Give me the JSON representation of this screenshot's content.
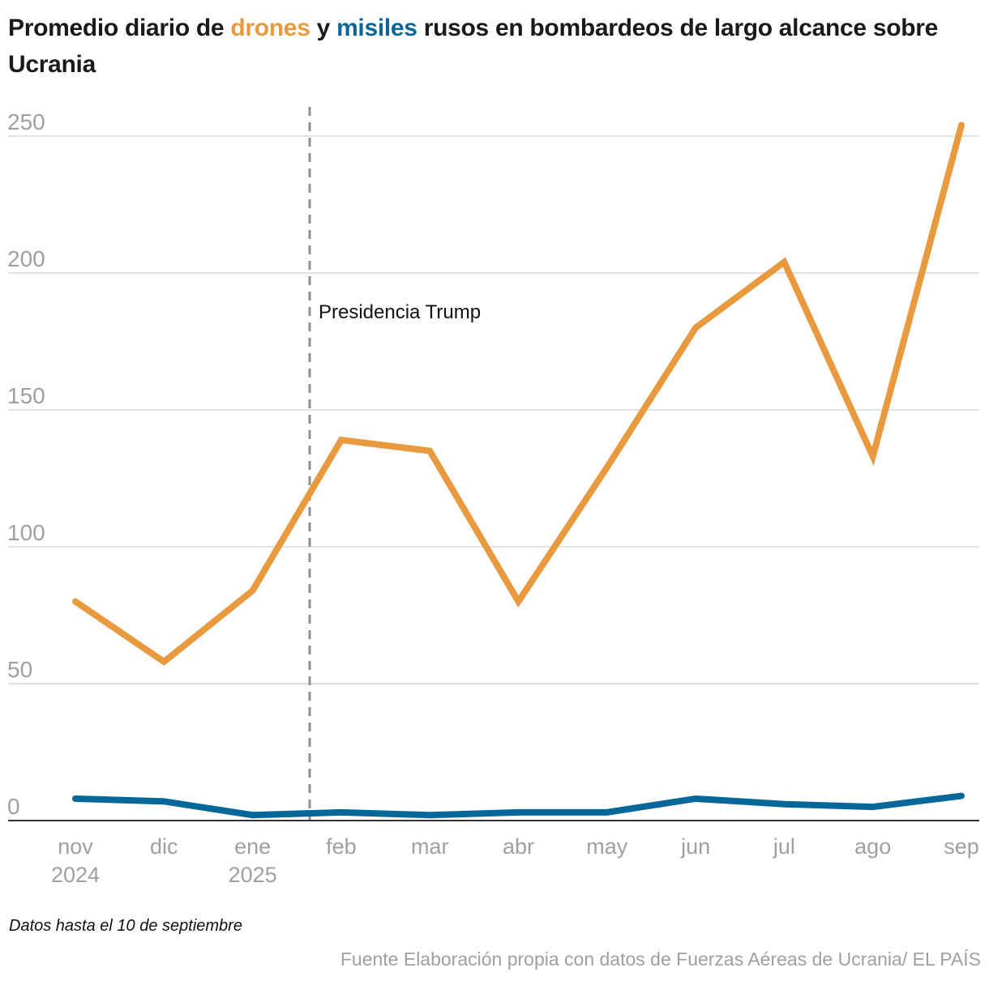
{
  "header": {
    "title_part1": "Promedio diario de ",
    "title_drones": "drones",
    "title_part2": " y ",
    "title_misiles": "misiles",
    "title_part3": " rusos en bombardeos de largo alcance sobre Ucrania"
  },
  "colors": {
    "drones": "#ea9a3e",
    "misiles": "#066899",
    "grid": "#e3e3e3",
    "axis": "#333333",
    "tick_text": "#a0a0a0",
    "annotation_line": "#8c9098"
  },
  "chart_data": {
    "type": "line",
    "title": "Promedio diario de drones y misiles rusos en bombardeos de largo alcance sobre Ucrania",
    "xlabel": "",
    "ylabel": "",
    "categories": [
      "nov",
      "dic",
      "ene",
      "feb",
      "mar",
      "abr",
      "may",
      "jun",
      "jul",
      "ago",
      "sep"
    ],
    "category_sublabels": [
      "2024",
      "",
      "2025",
      "",
      "",
      "",
      "",
      "",
      "",
      "",
      ""
    ],
    "series": [
      {
        "name": "drones",
        "values": [
          80,
          58,
          84,
          139,
          135,
          80,
          129,
          180,
          204,
          133,
          254
        ]
      },
      {
        "name": "misiles",
        "values": [
          8,
          7,
          2,
          3,
          2,
          3,
          3,
          8,
          6,
          5,
          9
        ]
      }
    ],
    "ylim": [
      0,
      250
    ],
    "yticks": [
      0,
      50,
      100,
      150,
      200,
      250
    ],
    "grid": true,
    "legend": "in-title",
    "annotations": [
      {
        "text": "Presidencia Trump",
        "x_position": "between ene and feb",
        "style": "dashed vertical line"
      }
    ]
  },
  "footer": {
    "note": "Datos hasta el 10 de septiembre",
    "source": "Fuente Elaboración propia con datos de Fuerzas Aéreas de Ucrania/ EL PAÍS"
  }
}
